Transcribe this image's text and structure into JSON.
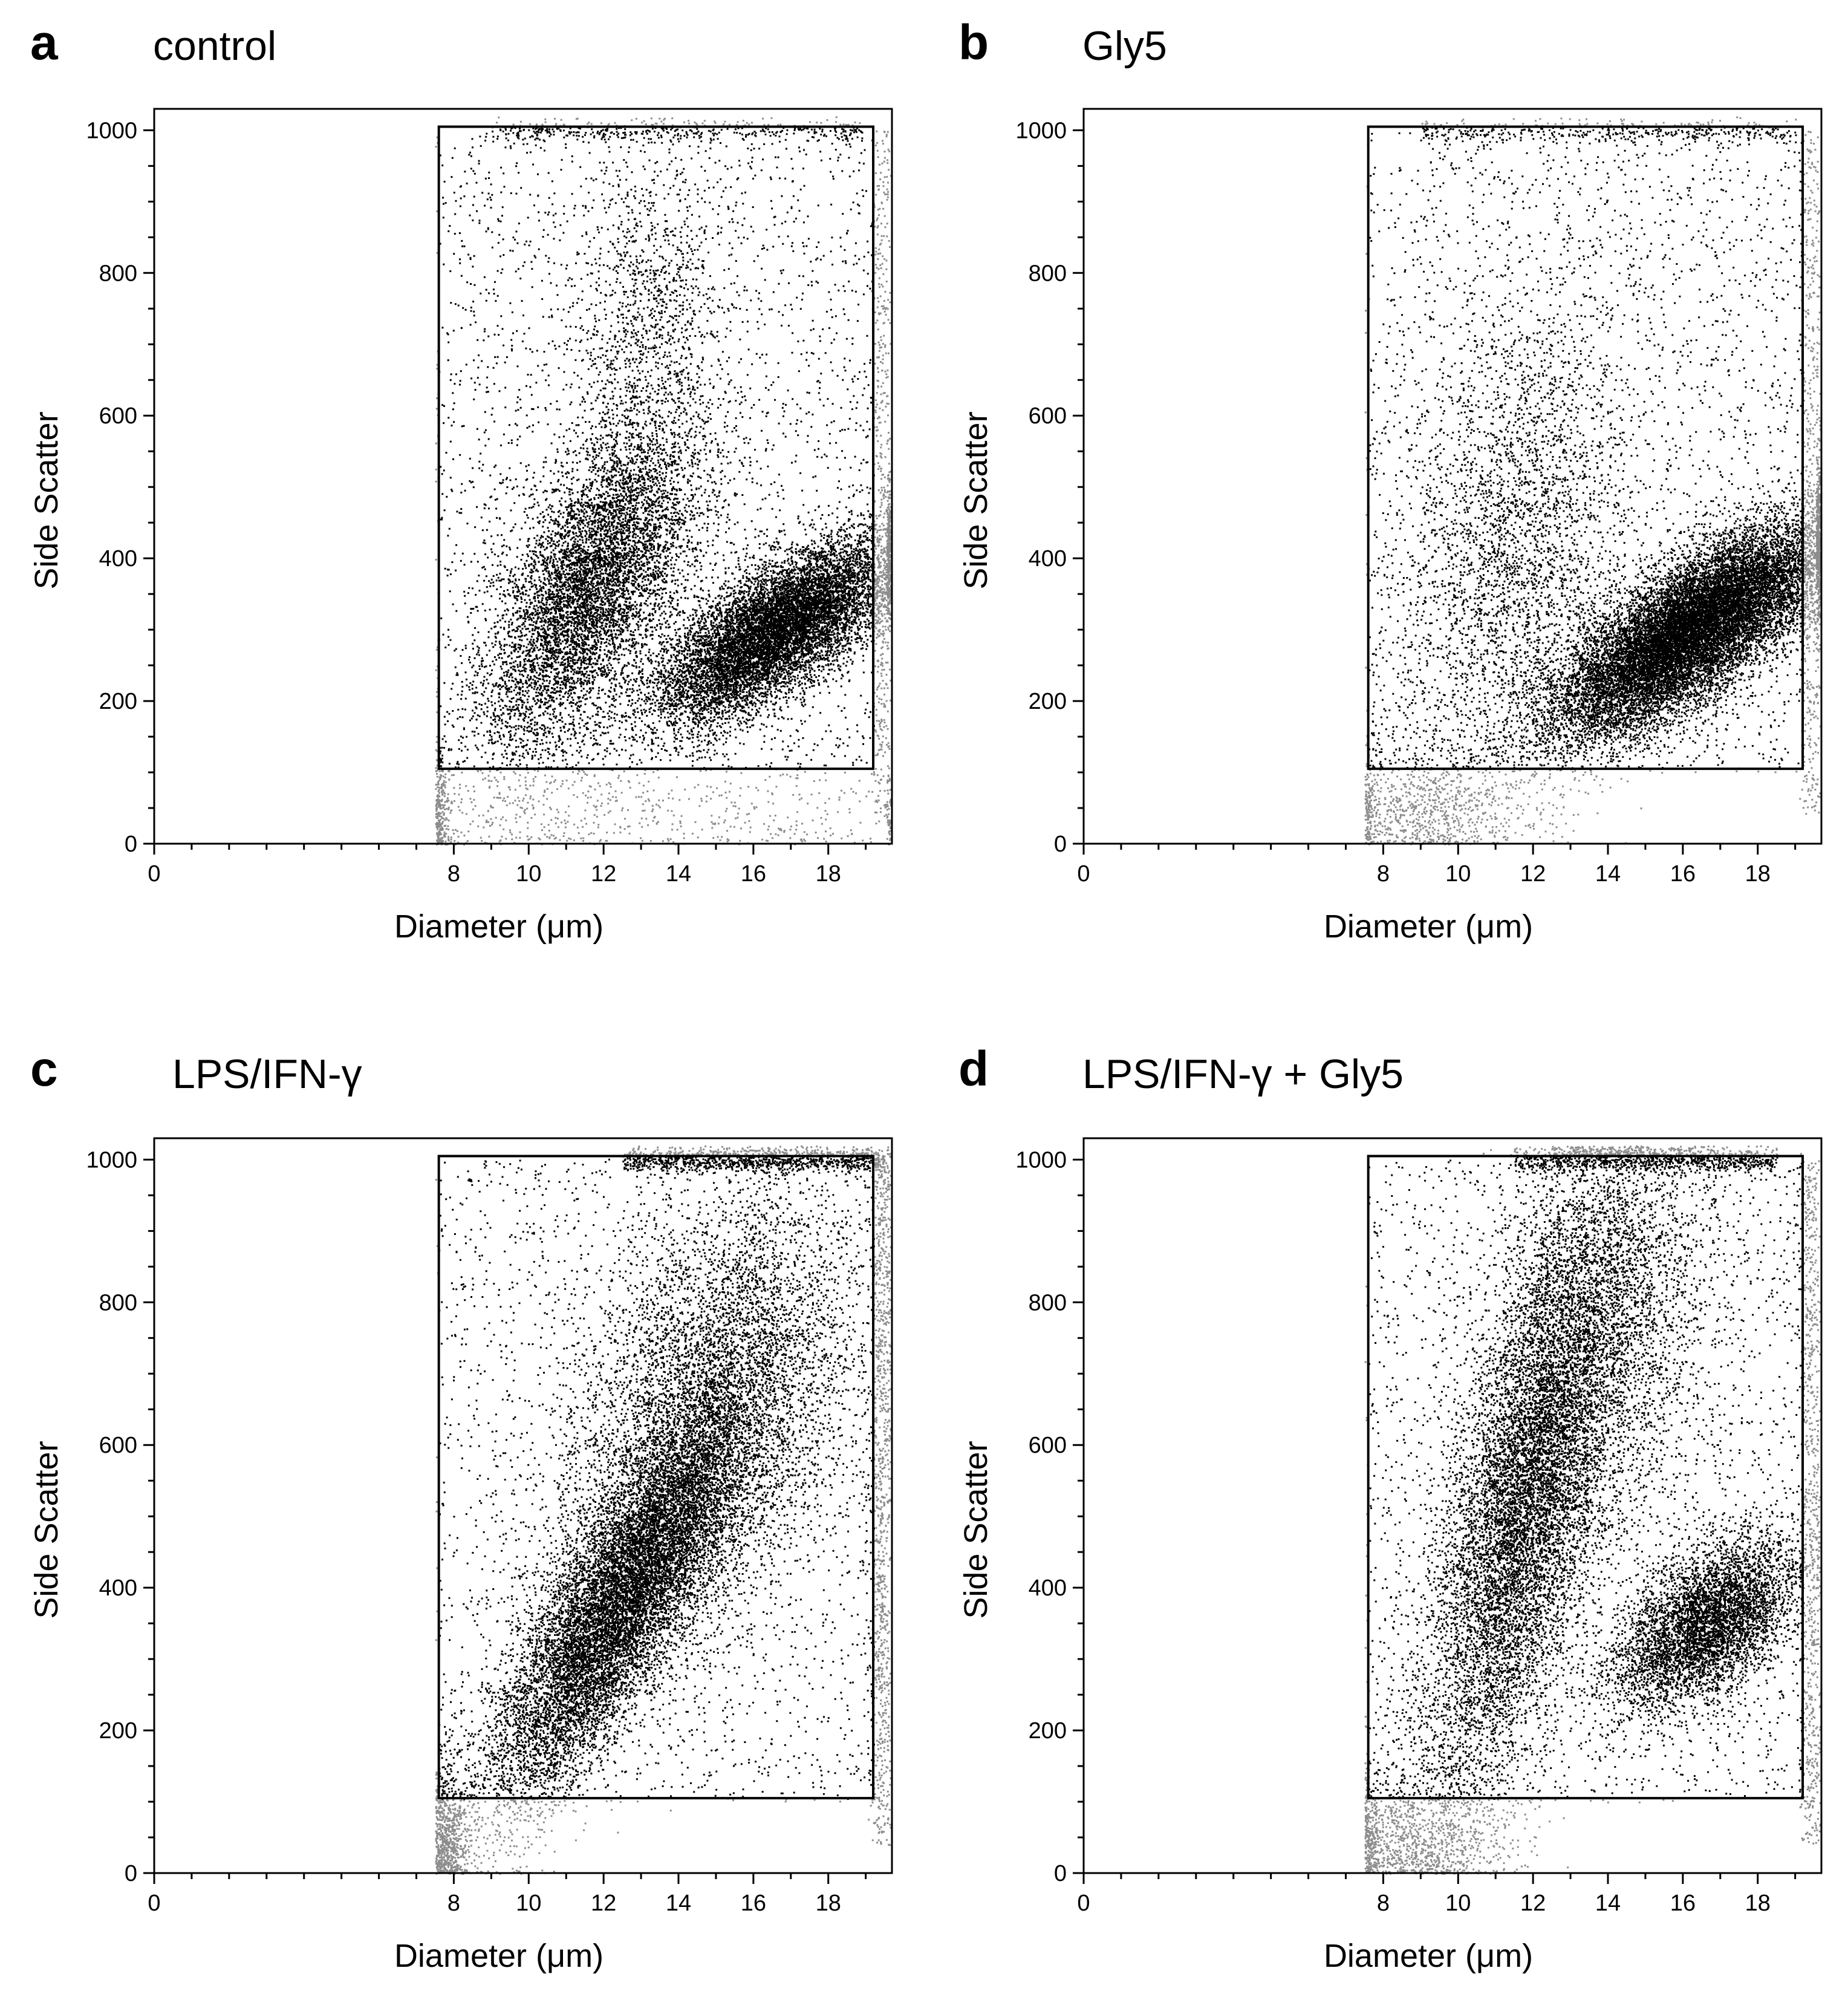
{
  "panels": [
    {
      "letter": "a",
      "title": "control"
    },
    {
      "letter": "b",
      "title": "Gly5"
    },
    {
      "letter": "c",
      "title": "LPS/IFN-γ"
    },
    {
      "letter": "d",
      "title": "LPS/IFN-γ + Gly5"
    }
  ],
  "colors": {
    "gated_events": "#000000",
    "ungated_events": "#8c8c8c",
    "gate": "#000000"
  },
  "chart_data": [
    {
      "type": "scatter",
      "title": "control",
      "xlabel": "Diameter (μm)",
      "ylabel": "Side Scatter",
      "xlim": [
        0,
        19.7
      ],
      "ylim": [
        0,
        1030
      ],
      "xticks": [
        0,
        8,
        10,
        12,
        14,
        16,
        18
      ],
      "yticks": [
        0,
        200,
        400,
        600,
        800,
        1000
      ],
      "gate": {
        "x": [
          7.6,
          19.2
        ],
        "y": [
          105,
          1005
        ]
      },
      "populations": [
        {
          "mode": "blob",
          "x_center": 11.6,
          "y_center": 360,
          "x_spread": 1.4,
          "y_spread": 90,
          "slope": 70,
          "share": 0.3
        },
        {
          "mode": "blob",
          "x_center": 13.2,
          "y_center": 700,
          "x_spread": 1.0,
          "y_spread": 130,
          "slope": 30,
          "share": 0.05
        },
        {
          "mode": "blob",
          "x_center": 16.6,
          "y_center": 300,
          "x_spread": 1.6,
          "y_spread": 45,
          "slope": 45,
          "share": 0.45
        },
        {
          "mode": "uniform",
          "x_center": 13.5,
          "y_center": 550,
          "x_spread": 6,
          "y_spread": 450,
          "slope": 0,
          "share": 0.12
        },
        {
          "mode": "debris",
          "x_center": 11,
          "y_center": 45,
          "x_spread": 6,
          "y_spread": 45,
          "slope": 0,
          "share": 0.04
        },
        {
          "mode": "top_edge",
          "x_center": 14,
          "y_center": 1000,
          "x_spread": 5,
          "y_spread": 8,
          "slope": 0,
          "share": 0.02
        },
        {
          "mode": "right_edge",
          "x_center": 19.4,
          "y_center": 520,
          "x_spread": 0.15,
          "y_spread": 480,
          "slope": 0,
          "share": 0.02
        }
      ]
    },
    {
      "type": "scatter",
      "title": "Gly5",
      "xlabel": "Diameter (μm)",
      "ylabel": "Side Scatter",
      "xlim": [
        0,
        19.7
      ],
      "ylim": [
        0,
        1030
      ],
      "xticks": [
        0,
        8,
        10,
        12,
        14,
        16,
        18
      ],
      "yticks": [
        0,
        200,
        400,
        600,
        800,
        1000
      ],
      "gate": {
        "x": [
          7.6,
          19.2
        ],
        "y": [
          105,
          1005
        ]
      },
      "populations": [
        {
          "mode": "blob",
          "x_center": 11.5,
          "y_center": 420,
          "x_spread": 1.5,
          "y_spread": 160,
          "slope": 40,
          "share": 0.12
        },
        {
          "mode": "blob",
          "x_center": 16.2,
          "y_center": 300,
          "x_spread": 1.8,
          "y_spread": 50,
          "slope": 55,
          "share": 0.68
        },
        {
          "mode": "uniform",
          "x_center": 13.5,
          "y_center": 550,
          "x_spread": 6,
          "y_spread": 450,
          "slope": 0,
          "share": 0.12
        },
        {
          "mode": "debris",
          "x_center": 9,
          "y_center": 50,
          "x_spread": 1.5,
          "y_spread": 45,
          "slope": 0,
          "share": 0.04
        },
        {
          "mode": "top_edge",
          "x_center": 14,
          "y_center": 1000,
          "x_spread": 5,
          "y_spread": 8,
          "slope": 0,
          "share": 0.02
        },
        {
          "mode": "right_edge",
          "x_center": 19.4,
          "y_center": 520,
          "x_spread": 0.15,
          "y_spread": 480,
          "slope": 0,
          "share": 0.02
        }
      ]
    },
    {
      "type": "scatter",
      "title": "LPS/IFN-γ",
      "xlabel": "Diameter (μm)",
      "ylabel": "Side Scatter",
      "xlim": [
        0,
        19.7
      ],
      "ylim": [
        0,
        1030
      ],
      "xticks": [
        0,
        8,
        10,
        12,
        14,
        16,
        18
      ],
      "yticks": [
        0,
        200,
        400,
        600,
        800,
        1000
      ],
      "gate": {
        "x": [
          7.6,
          19.2
        ],
        "y": [
          105,
          1005
        ]
      },
      "populations": [
        {
          "mode": "blob",
          "x_center": 12.4,
          "y_center": 380,
          "x_spread": 1.7,
          "y_spread": 80,
          "slope": 115,
          "share": 0.5
        },
        {
          "mode": "blob",
          "x_center": 14.8,
          "y_center": 650,
          "x_spread": 1.9,
          "y_spread": 150,
          "slope": 60,
          "share": 0.28
        },
        {
          "mode": "uniform",
          "x_center": 13.5,
          "y_center": 550,
          "x_spread": 6,
          "y_spread": 450,
          "slope": 0,
          "share": 0.1
        },
        {
          "mode": "debris",
          "x_center": 7.8,
          "y_center": 50,
          "x_spread": 0.3,
          "y_spread": 50,
          "slope": 0,
          "share": 0.03
        },
        {
          "mode": "top_edge",
          "x_center": 16,
          "y_center": 1000,
          "x_spread": 3.5,
          "y_spread": 8,
          "slope": 0,
          "share": 0.05
        },
        {
          "mode": "right_edge",
          "x_center": 19.4,
          "y_center": 520,
          "x_spread": 0.15,
          "y_spread": 480,
          "slope": 0,
          "share": 0.04
        }
      ]
    },
    {
      "type": "scatter",
      "title": "LPS/IFN-γ + Gly5",
      "xlabel": "Diameter (μm)",
      "ylabel": "Side Scatter",
      "xlim": [
        0,
        19.7
      ],
      "ylim": [
        0,
        1030
      ],
      "xticks": [
        0,
        8,
        10,
        12,
        14,
        16,
        18
      ],
      "yticks": [
        0,
        200,
        400,
        600,
        800,
        1000
      ],
      "gate": {
        "x": [
          7.6,
          19.2
        ],
        "y": [
          105,
          1005
        ]
      },
      "populations": [
        {
          "mode": "blob",
          "x_center": 11.8,
          "y_center": 520,
          "x_spread": 1.3,
          "y_spread": 150,
          "slope": 130,
          "share": 0.4
        },
        {
          "mode": "blob",
          "x_center": 13.8,
          "y_center": 780,
          "x_spread": 1.5,
          "y_spread": 150,
          "slope": 40,
          "share": 0.14
        },
        {
          "mode": "blob",
          "x_center": 16.6,
          "y_center": 350,
          "x_spread": 1.2,
          "y_spread": 50,
          "slope": 30,
          "share": 0.22
        },
        {
          "mode": "uniform",
          "x_center": 13.5,
          "y_center": 550,
          "x_spread": 6,
          "y_spread": 450,
          "slope": 0,
          "share": 0.12
        },
        {
          "mode": "debris",
          "x_center": 8.6,
          "y_center": 50,
          "x_spread": 1.3,
          "y_spread": 50,
          "slope": 0,
          "share": 0.05
        },
        {
          "mode": "top_edge",
          "x_center": 15,
          "y_center": 1000,
          "x_spread": 3.5,
          "y_spread": 8,
          "slope": 0,
          "share": 0.04
        },
        {
          "mode": "right_edge",
          "x_center": 19.4,
          "y_center": 520,
          "x_spread": 0.15,
          "y_spread": 480,
          "slope": 0,
          "share": 0.03
        }
      ]
    }
  ]
}
